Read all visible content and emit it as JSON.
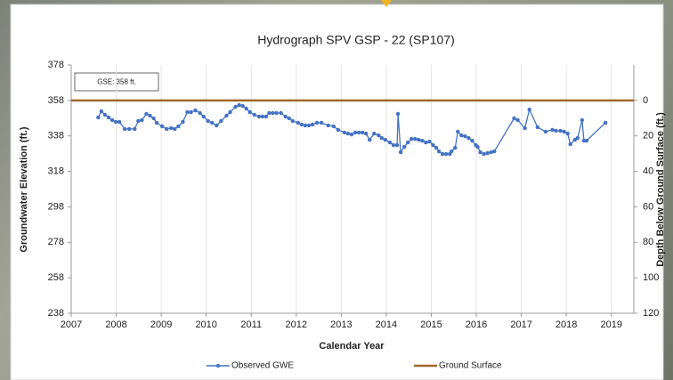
{
  "chart_data": {
    "type": "line",
    "title": "Hydrograph SPV GSP - 22 (SP107)",
    "xlabel": "Calendar Year",
    "ylabel": "Groundwater Elevation (ft.)",
    "y2label": "Depth Below Ground Surface  (ft.)",
    "annotation": "GSE:  358 ft.",
    "xlim": [
      2007,
      2019.5
    ],
    "xticks": [
      2007,
      2008,
      2009,
      2010,
      2011,
      2012,
      2013,
      2014,
      2015,
      2016,
      2017,
      2018,
      2019
    ],
    "ylim": [
      238,
      378
    ],
    "yticks": [
      238,
      258,
      278,
      298,
      318,
      338,
      358,
      378
    ],
    "y2lim": [
      -20,
      120
    ],
    "y2_inverted": true,
    "y2ticks": [
      0,
      20,
      40,
      60,
      80,
      100,
      120
    ],
    "grid": "x",
    "legend": "bottom",
    "series": [
      {
        "name": "Observed GWE",
        "color": "#4472c4",
        "markers": true,
        "x": [
          2007.6,
          2007.67,
          2007.75,
          2007.83,
          2007.91,
          2007.99,
          2008.07,
          2008.19,
          2008.29,
          2008.41,
          2008.49,
          2008.57,
          2008.67,
          2008.75,
          2008.83,
          2008.9,
          2009.02,
          2009.12,
          2009.22,
          2009.3,
          2009.38,
          2009.48,
          2009.58,
          2009.66,
          2009.76,
          2009.86,
          2009.94,
          2010.04,
          2010.13,
          2010.23,
          2010.33,
          2010.45,
          2010.53,
          2010.65,
          2010.73,
          2010.81,
          2010.89,
          2010.97,
          2011.07,
          2011.17,
          2011.25,
          2011.33,
          2011.4,
          2011.48,
          2011.56,
          2011.66,
          2011.76,
          2011.84,
          2011.92,
          2012.04,
          2012.12,
          2012.2,
          2012.28,
          2012.36,
          2012.46,
          2012.56,
          2012.71,
          2012.83,
          2012.93,
          2013.07,
          2013.15,
          2013.23,
          2013.31,
          2013.39,
          2013.47,
          2013.55,
          2013.63,
          2013.73,
          2013.83,
          2013.9,
          2013.98,
          2014.08,
          2014.16,
          2014.24,
          2014.26,
          2014.32,
          2014.4,
          2014.48,
          2014.56,
          2014.64,
          2014.72,
          2014.8,
          2014.88,
          2014.96,
          2015.04,
          2015.11,
          2015.17,
          2015.25,
          2015.33,
          2015.41,
          2015.45,
          2015.53,
          2015.59,
          2015.67,
          2015.75,
          2015.83,
          2015.91,
          2015.99,
          2016.03,
          2016.09,
          2016.17,
          2016.25,
          2016.33,
          2016.4,
          2016.84,
          2016.92,
          2017.08,
          2017.18,
          2017.36,
          2017.54,
          2017.69,
          2017.77,
          2017.87,
          2017.95,
          2018.03,
          2018.09,
          2018.19,
          2018.25,
          2018.35,
          2018.39,
          2018.45,
          2018.87
        ],
        "values": [
          348.4,
          351.9,
          349.9,
          348.4,
          346.9,
          345.9,
          345.9,
          341.9,
          341.9,
          341.9,
          346.4,
          346.9,
          350.4,
          349.4,
          347.9,
          345.4,
          343.4,
          341.9,
          342.4,
          341.9,
          343.4,
          345.9,
          351.4,
          351.4,
          352.4,
          350.9,
          348.9,
          346.4,
          345.4,
          343.9,
          346.4,
          349.4,
          351.4,
          354.4,
          355.4,
          354.9,
          353.4,
          351.4,
          349.9,
          348.9,
          348.9,
          348.9,
          350.9,
          350.9,
          350.9,
          350.9,
          348.9,
          347.9,
          346.4,
          345.4,
          344.4,
          343.9,
          343.9,
          344.4,
          345.4,
          345.4,
          343.9,
          343.4,
          341.4,
          339.9,
          339.3,
          338.8,
          339.9,
          339.9,
          339.9,
          339.3,
          335.8,
          339.3,
          338.3,
          336.8,
          335.8,
          334.3,
          332.8,
          332.8,
          350.4,
          328.8,
          331.8,
          334.3,
          336.3,
          336.3,
          335.8,
          335.3,
          334.3,
          334.8,
          332.8,
          331.3,
          329.3,
          327.8,
          327.8,
          327.8,
          329.3,
          331.3,
          340.4,
          338.3,
          337.8,
          336.8,
          335.3,
          332.8,
          331.8,
          328.8,
          327.8,
          328.3,
          328.8,
          329.3,
          347.9,
          346.9,
          342.4,
          352.9,
          342.9,
          340.4,
          341.4,
          340.9,
          340.9,
          340.4,
          339.3,
          333.3,
          335.8,
          336.8,
          346.9,
          335.3,
          335.3,
          345.4
        ]
      },
      {
        "name": "Ground Surface",
        "color": "#a0682a",
        "markers": false,
        "x": [
          2007,
          2019.5
        ],
        "values": [
          358,
          358
        ]
      }
    ]
  }
}
